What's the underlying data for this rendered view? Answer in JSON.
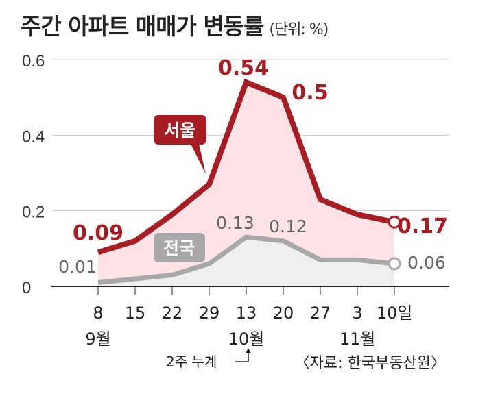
{
  "title": "주간 아파트 매매가 변동률",
  "unit": "(단위: %)",
  "source": "〈자료: 한국부동산원〉",
  "note": "2주 누계",
  "chart_data": {
    "type": "area",
    "categories": [
      "8",
      "15",
      "22",
      "29",
      "13",
      "20",
      "27",
      "3",
      "10일"
    ],
    "month_labels": [
      {
        "label": "9월",
        "at": 0
      },
      {
        "label": "10월",
        "at": 4
      },
      {
        "label": "11월",
        "at": 7
      }
    ],
    "ylim": [
      0,
      0.6
    ],
    "yticks": [
      "0",
      "0.2",
      "0.4",
      "0.6"
    ],
    "grid": true,
    "series": [
      {
        "name": "서울",
        "color": "#a71d24",
        "fill": "#fde3e6",
        "values": [
          0.09,
          0.12,
          0.19,
          0.27,
          0.54,
          0.5,
          0.23,
          0.19,
          0.17
        ],
        "labels": {
          "0": "0.09",
          "4": "0.54",
          "5": "0.5",
          "8": "0.17"
        }
      },
      {
        "name": "전국",
        "color": "#a8a8a8",
        "fill": "#efefef",
        "values": [
          0.01,
          0.02,
          0.03,
          0.06,
          0.13,
          0.12,
          0.07,
          0.07,
          0.06
        ],
        "labels": {
          "0": "0.01",
          "4": "0.13",
          "5": "0.12",
          "8": "0.06"
        }
      }
    ]
  }
}
